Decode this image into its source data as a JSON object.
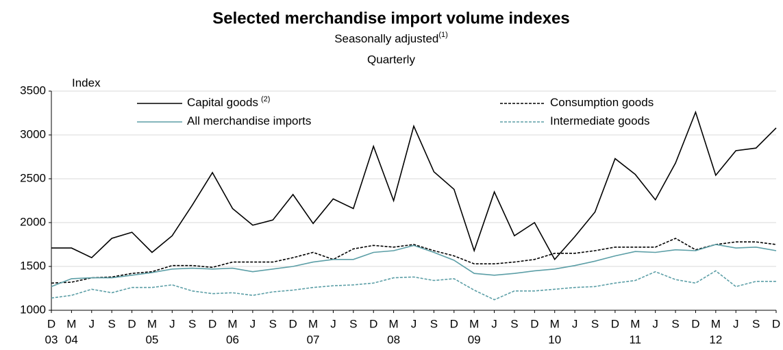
{
  "chart_data": {
    "type": "line",
    "title": "Selected merchandise import volume indexes",
    "subtitle": "Seasonally adjusted",
    "subtitle_note": "(1)",
    "subtitle2": "Quarterly",
    "ylabel": "Index",
    "categories": [
      "D",
      "M",
      "J",
      "S",
      "D",
      "M",
      "J",
      "S",
      "D",
      "M",
      "J",
      "S",
      "D",
      "M",
      "J",
      "S",
      "D",
      "M",
      "J",
      "S",
      "D",
      "M",
      "J",
      "S",
      "D",
      "M",
      "J",
      "S",
      "D",
      "M",
      "J",
      "S",
      "D",
      "M",
      "J",
      "S",
      "D"
    ],
    "year_labels": [
      "03",
      "04",
      null,
      null,
      null,
      "05",
      null,
      null,
      null,
      "06",
      null,
      null,
      null,
      "07",
      null,
      null,
      null,
      "08",
      null,
      null,
      null,
      "09",
      null,
      null,
      null,
      "10",
      null,
      null,
      null,
      "11",
      null,
      null,
      null,
      "12",
      null,
      null,
      null
    ],
    "ylim": [
      1000,
      3500
    ],
    "yticks": [
      1000,
      1500,
      2000,
      2500,
      3000,
      3500
    ],
    "grid": true,
    "series": [
      {
        "name": "Capital goods",
        "note": "(2)",
        "color": "#000000",
        "dashed": false,
        "values": [
          1710,
          1710,
          1600,
          1820,
          1890,
          1660,
          1850,
          2200,
          2570,
          2160,
          1970,
          2030,
          2320,
          1990,
          2270,
          2160,
          2870,
          2250,
          3100,
          2580,
          2380,
          1680,
          2350,
          1850,
          2000,
          1580,
          1840,
          2120,
          2730,
          2550,
          2260,
          2680,
          3260,
          2540,
          2820,
          2850,
          3080
        ]
      },
      {
        "name": "Consumption goods",
        "color": "#000000",
        "dashed": true,
        "values": [
          1310,
          1320,
          1370,
          1380,
          1420,
          1440,
          1510,
          1510,
          1490,
          1550,
          1550,
          1550,
          1600,
          1660,
          1580,
          1700,
          1740,
          1720,
          1750,
          1680,
          1620,
          1530,
          1530,
          1550,
          1580,
          1650,
          1650,
          1680,
          1720,
          1720,
          1720,
          1820,
          1690,
          1750,
          1780,
          1780,
          1750
        ]
      },
      {
        "name": "All merchandise imports",
        "color": "#5b9ea6",
        "dashed": false,
        "values": [
          1270,
          1360,
          1370,
          1370,
          1400,
          1430,
          1470,
          1480,
          1470,
          1480,
          1440,
          1470,
          1500,
          1550,
          1580,
          1580,
          1660,
          1680,
          1740,
          1660,
          1570,
          1420,
          1400,
          1420,
          1450,
          1470,
          1510,
          1560,
          1620,
          1670,
          1660,
          1690,
          1680,
          1750,
          1710,
          1720,
          1680
        ]
      },
      {
        "name": "Intermediate goods",
        "color": "#5b9ea6",
        "dashed": true,
        "values": [
          1140,
          1170,
          1240,
          1200,
          1260,
          1260,
          1290,
          1220,
          1190,
          1200,
          1170,
          1210,
          1230,
          1260,
          1280,
          1290,
          1310,
          1370,
          1380,
          1340,
          1360,
          1230,
          1120,
          1220,
          1220,
          1240,
          1260,
          1270,
          1310,
          1340,
          1440,
          1350,
          1310,
          1450,
          1270,
          1330,
          1330
        ]
      }
    ]
  }
}
